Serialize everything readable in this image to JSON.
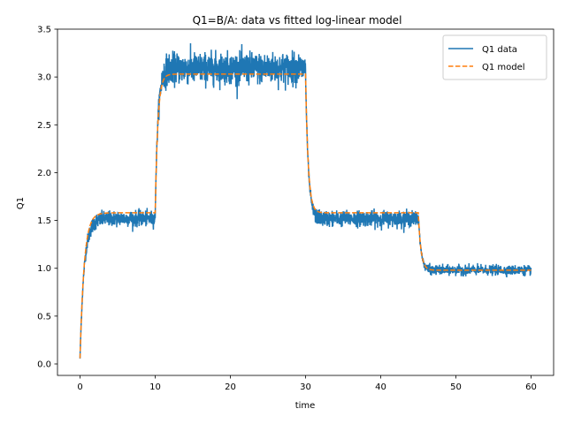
{
  "chart_data": {
    "type": "line",
    "title": "Q1=B/A: data vs fitted log-linear model",
    "xlabel": "time",
    "ylabel": "Q1",
    "xlim": [
      -3,
      63
    ],
    "ylim": [
      -0.12,
      3.5
    ],
    "xticks": [
      0,
      10,
      20,
      30,
      40,
      50,
      60
    ],
    "yticks": [
      0.0,
      0.5,
      1.0,
      1.5,
      2.0,
      2.5,
      3.0,
      3.5
    ],
    "xtick_labels": [
      "0",
      "10",
      "20",
      "30",
      "40",
      "50",
      "60"
    ],
    "ytick_labels": [
      "0.0",
      "0.5",
      "1.0",
      "1.5",
      "2.0",
      "2.5",
      "3.0",
      "3.5"
    ],
    "grid": false,
    "legend_position": "upper right",
    "model_segments": [
      {
        "t_start": 0,
        "t_end": 10,
        "level": 1.58,
        "tau": 0.55
      },
      {
        "t_start": 10,
        "t_end": 30,
        "level": 3.03,
        "tau": 0.35
      },
      {
        "t_start": 30,
        "t_end": 45,
        "level": 1.58,
        "tau": 0.35
      },
      {
        "t_start": 45,
        "t_end": 60,
        "level": 0.98,
        "tau": 0.35
      }
    ],
    "model_start_value": 0.06,
    "data_noise_by_segment": [
      0.04,
      0.08,
      0.04,
      0.025
    ],
    "data_offset_by_segment": [
      -0.06,
      0.06,
      -0.06,
      0.0
    ],
    "series": [
      {
        "name": "Q1 data",
        "color": "#1f77b4",
        "style": "solid"
      },
      {
        "name": "Q1 model",
        "color": "#ff7f0e",
        "style": "dashed"
      }
    ]
  }
}
